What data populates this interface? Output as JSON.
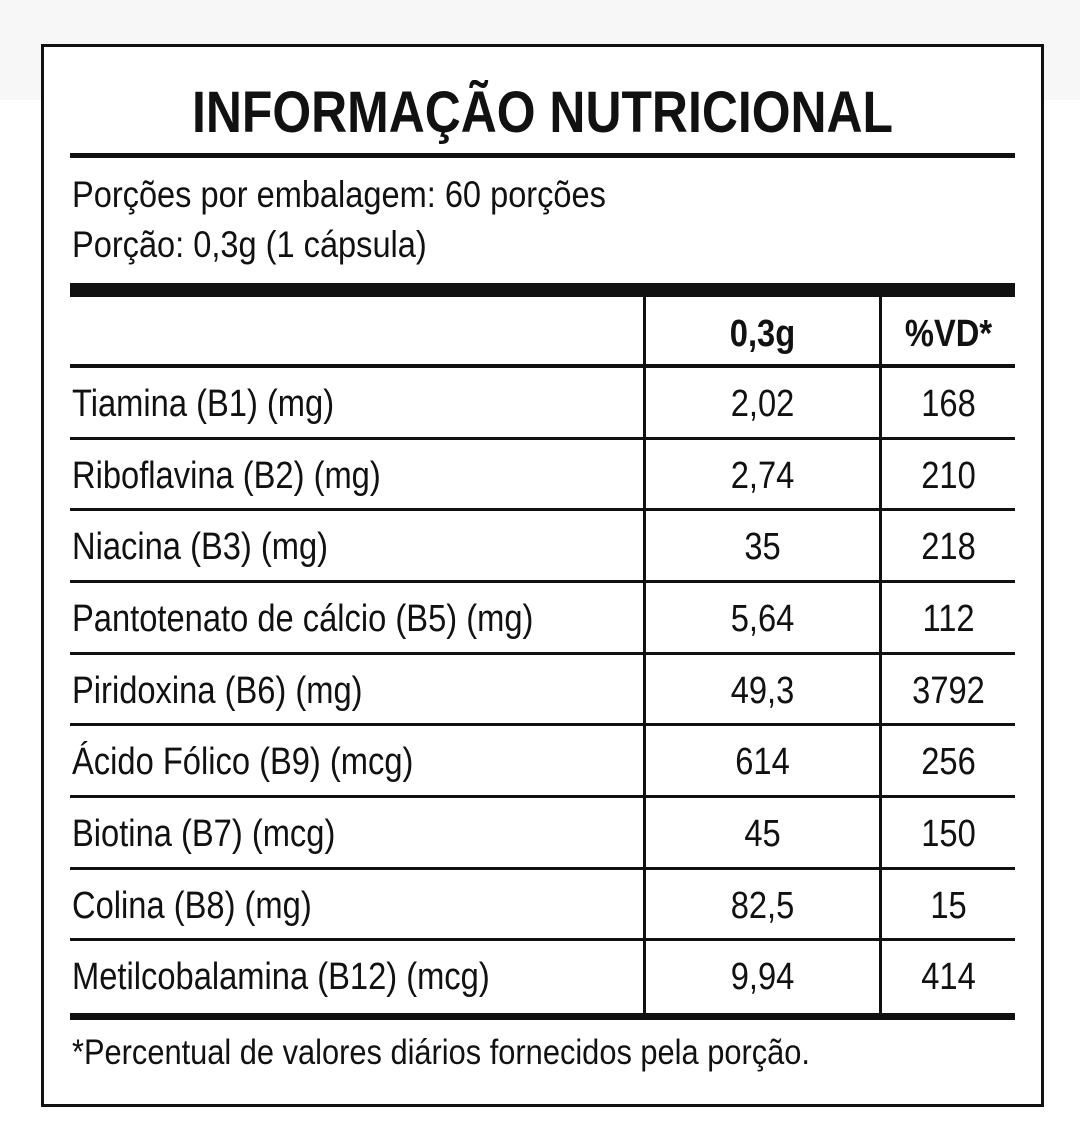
{
  "header": {
    "title": "INFORMAÇÃO NUTRICIONAL"
  },
  "serving": {
    "lines": [
      "Porções por embalagem: 60 porções",
      "Porção: 0,3g (1 cápsula)"
    ]
  },
  "table": {
    "header": [
      "0,3g",
      "%VD*"
    ],
    "rows": [
      [
        "Tiamina (B1) (mg)",
        "2,02",
        "168"
      ],
      [
        "Riboflavina (B2) (mg)",
        "2,74",
        "210"
      ],
      [
        "Niacina (B3) (mg)",
        "35",
        "218"
      ],
      [
        "Pantotenato de cálcio (B5) (mg)",
        "5,64",
        "112"
      ],
      [
        "Piridoxina (B6) (mg)",
        "49,3",
        "3792"
      ],
      [
        "Ácido Fólico (B9) (mcg)",
        "614",
        "256"
      ],
      [
        "Biotina (B7) (mcg)",
        "45",
        "150"
      ],
      [
        "Colina (B8) (mg)",
        "82,5",
        "15"
      ],
      [
        "Metilcobalamina (B12) (mcg)",
        "9,94",
        "414"
      ]
    ]
  },
  "footnote": "*Percentual de valores diários fornecidos pela porção."
}
